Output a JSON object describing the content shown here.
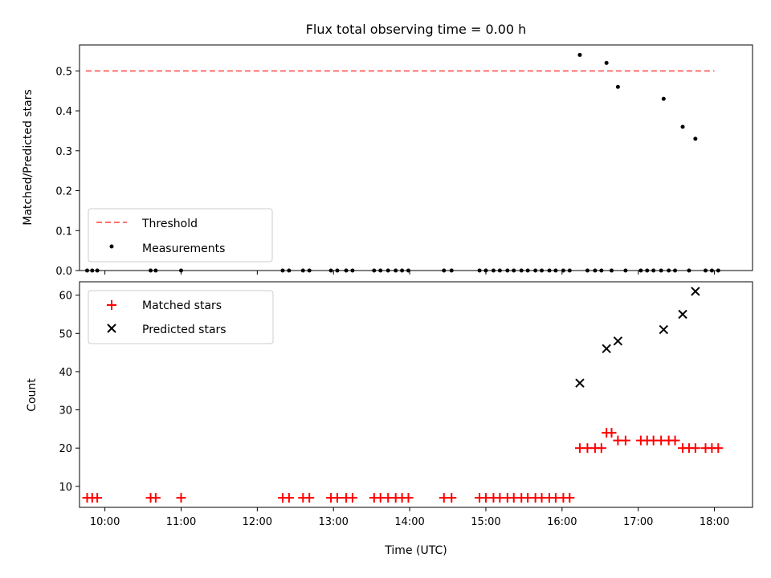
{
  "chart_data": [
    {
      "type": "scatter",
      "title": "Flux total observing time = 0.00 h",
      "xlabel": "",
      "ylabel": "Matched/Predicted stars",
      "xlim": [
        "09:40",
        "18:30"
      ],
      "ylim": [
        0,
        0.565
      ],
      "yticks": [
        0.0,
        0.1,
        0.2,
        0.3,
        0.4,
        0.5
      ],
      "ytick_labels": [
        "0.0",
        "0.1",
        "0.2",
        "0.3",
        "0.4",
        "0.5"
      ],
      "legend_position": "lower-left",
      "grid": false,
      "threshold": {
        "name": "Threshold",
        "value": 0.5,
        "x_range": [
          "09:45",
          "18:00"
        ],
        "color": "#ff7070",
        "style": "dashed"
      },
      "measurements": {
        "name": "Measurements",
        "color": "#000000",
        "points": [
          {
            "x": "09:46",
            "y": 0
          },
          {
            "x": "09:50",
            "y": 0
          },
          {
            "x": "09:54",
            "y": 0
          },
          {
            "x": "10:36",
            "y": 0
          },
          {
            "x": "10:40",
            "y": 0
          },
          {
            "x": "11:00",
            "y": 0
          },
          {
            "x": "12:20",
            "y": 0
          },
          {
            "x": "12:25",
            "y": 0
          },
          {
            "x": "12:36",
            "y": 0
          },
          {
            "x": "12:41",
            "y": 0
          },
          {
            "x": "12:58",
            "y": 0
          },
          {
            "x": "13:03",
            "y": 0
          },
          {
            "x": "13:10",
            "y": 0
          },
          {
            "x": "13:15",
            "y": 0
          },
          {
            "x": "13:32",
            "y": 0
          },
          {
            "x": "13:37",
            "y": 0
          },
          {
            "x": "13:43",
            "y": 0
          },
          {
            "x": "13:49",
            "y": 0
          },
          {
            "x": "13:54",
            "y": 0
          },
          {
            "x": "13:59",
            "y": 0
          },
          {
            "x": "14:27",
            "y": 0
          },
          {
            "x": "14:33",
            "y": 0
          },
          {
            "x": "14:55",
            "y": 0
          },
          {
            "x": "15:00",
            "y": 0
          },
          {
            "x": "15:06",
            "y": 0
          },
          {
            "x": "15:11",
            "y": 0
          },
          {
            "x": "15:17",
            "y": 0
          },
          {
            "x": "15:22",
            "y": 0
          },
          {
            "x": "15:28",
            "y": 0
          },
          {
            "x": "15:33",
            "y": 0
          },
          {
            "x": "15:39",
            "y": 0
          },
          {
            "x": "15:44",
            "y": 0
          },
          {
            "x": "15:50",
            "y": 0
          },
          {
            "x": "15:55",
            "y": 0
          },
          {
            "x": "16:01",
            "y": 0
          },
          {
            "x": "16:06",
            "y": 0
          },
          {
            "x": "16:14",
            "y": 0.54
          },
          {
            "x": "16:20",
            "y": 0
          },
          {
            "x": "16:26",
            "y": 0
          },
          {
            "x": "16:31",
            "y": 0
          },
          {
            "x": "16:35",
            "y": 0.52
          },
          {
            "x": "16:39",
            "y": 0
          },
          {
            "x": "16:44",
            "y": 0.46
          },
          {
            "x": "16:50",
            "y": 0
          },
          {
            "x": "17:02",
            "y": 0
          },
          {
            "x": "17:07",
            "y": 0
          },
          {
            "x": "17:12",
            "y": 0
          },
          {
            "x": "17:18",
            "y": 0
          },
          {
            "x": "17:20",
            "y": 0.43
          },
          {
            "x": "17:24",
            "y": 0
          },
          {
            "x": "17:29",
            "y": 0
          },
          {
            "x": "17:35",
            "y": 0.36
          },
          {
            "x": "17:40",
            "y": 0
          },
          {
            "x": "17:45",
            "y": 0.33
          },
          {
            "x": "17:53",
            "y": 0
          },
          {
            "x": "17:58",
            "y": 0
          },
          {
            "x": "18:03",
            "y": 0
          }
        ]
      }
    },
    {
      "type": "scatter",
      "title": "",
      "xlabel": "Time (UTC)",
      "ylabel": "Count",
      "xlim": [
        "09:40",
        "18:30"
      ],
      "ylim": [
        4.5,
        63.5
      ],
      "xticks": [
        "10:00",
        "11:00",
        "12:00",
        "13:00",
        "14:00",
        "15:00",
        "16:00",
        "17:00",
        "18:00"
      ],
      "yticks": [
        10,
        20,
        30,
        40,
        50,
        60
      ],
      "ytick_labels": [
        "10",
        "20",
        "30",
        "40",
        "50",
        "60"
      ],
      "legend_position": "upper-left",
      "grid": false,
      "series": [
        {
          "name": "Matched stars",
          "marker": "plus",
          "color": "#ff0000",
          "points": [
            {
              "x": "09:46",
              "y": 7
            },
            {
              "x": "09:50",
              "y": 7
            },
            {
              "x": "09:54",
              "y": 7
            },
            {
              "x": "10:36",
              "y": 7
            },
            {
              "x": "10:40",
              "y": 7
            },
            {
              "x": "11:00",
              "y": 7
            },
            {
              "x": "12:20",
              "y": 7
            },
            {
              "x": "12:25",
              "y": 7
            },
            {
              "x": "12:36",
              "y": 7
            },
            {
              "x": "12:41",
              "y": 7
            },
            {
              "x": "12:58",
              "y": 7
            },
            {
              "x": "13:03",
              "y": 7
            },
            {
              "x": "13:10",
              "y": 7
            },
            {
              "x": "13:15",
              "y": 7
            },
            {
              "x": "13:32",
              "y": 7
            },
            {
              "x": "13:37",
              "y": 7
            },
            {
              "x": "13:43",
              "y": 7
            },
            {
              "x": "13:49",
              "y": 7
            },
            {
              "x": "13:54",
              "y": 7
            },
            {
              "x": "13:59",
              "y": 7
            },
            {
              "x": "14:27",
              "y": 7
            },
            {
              "x": "14:33",
              "y": 7
            },
            {
              "x": "14:55",
              "y": 7
            },
            {
              "x": "15:00",
              "y": 7
            },
            {
              "x": "15:06",
              "y": 7
            },
            {
              "x": "15:11",
              "y": 7
            },
            {
              "x": "15:17",
              "y": 7
            },
            {
              "x": "15:22",
              "y": 7
            },
            {
              "x": "15:28",
              "y": 7
            },
            {
              "x": "15:33",
              "y": 7
            },
            {
              "x": "15:39",
              "y": 7
            },
            {
              "x": "15:44",
              "y": 7
            },
            {
              "x": "15:50",
              "y": 7
            },
            {
              "x": "15:55",
              "y": 7
            },
            {
              "x": "16:01",
              "y": 7
            },
            {
              "x": "16:06",
              "y": 7
            },
            {
              "x": "16:14",
              "y": 20
            },
            {
              "x": "16:20",
              "y": 20
            },
            {
              "x": "16:26",
              "y": 20
            },
            {
              "x": "16:31",
              "y": 20
            },
            {
              "x": "16:35",
              "y": 24
            },
            {
              "x": "16:39",
              "y": 24
            },
            {
              "x": "16:44",
              "y": 22
            },
            {
              "x": "16:50",
              "y": 22
            },
            {
              "x": "17:02",
              "y": 22
            },
            {
              "x": "17:07",
              "y": 22
            },
            {
              "x": "17:12",
              "y": 22
            },
            {
              "x": "17:18",
              "y": 22
            },
            {
              "x": "17:24",
              "y": 22
            },
            {
              "x": "17:29",
              "y": 22
            },
            {
              "x": "17:35",
              "y": 20
            },
            {
              "x": "17:40",
              "y": 20
            },
            {
              "x": "17:45",
              "y": 20
            },
            {
              "x": "17:53",
              "y": 20
            },
            {
              "x": "17:58",
              "y": 20
            },
            {
              "x": "18:03",
              "y": 20
            }
          ]
        },
        {
          "name": "Predicted stars",
          "marker": "x",
          "color": "#000000",
          "points": [
            {
              "x": "16:14",
              "y": 37
            },
            {
              "x": "16:35",
              "y": 46
            },
            {
              "x": "16:44",
              "y": 48
            },
            {
              "x": "17:20",
              "y": 51
            },
            {
              "x": "17:35",
              "y": 55
            },
            {
              "x": "17:45",
              "y": 61
            }
          ]
        }
      ]
    }
  ]
}
